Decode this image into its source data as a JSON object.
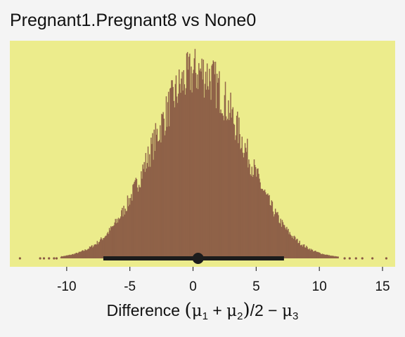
{
  "chart_data": {
    "type": "histogram",
    "title": "Pregnant1.Pregnant8 vs None0",
    "xlabel": "Difference (μ1 + μ2)/2 − μ3",
    "xlim": [
      -14.5,
      16
    ],
    "x_ticks": [
      -10,
      -5,
      0,
      5,
      10,
      15
    ],
    "x_tick_labels": [
      "-10",
      "-5",
      "0",
      "5",
      "10",
      "15"
    ],
    "distribution": {
      "center": 0.4,
      "sd": 3.6,
      "min": -13.7,
      "max": 15.3
    },
    "interval": {
      "low": -7.1,
      "high": 7.2,
      "point": 0.4
    },
    "colors": {
      "panel_background": "#ecec8c",
      "histogram_fill": "#8a5a44",
      "interval_line": "#1c1c1c",
      "page_background": "#f4f4f4"
    }
  }
}
